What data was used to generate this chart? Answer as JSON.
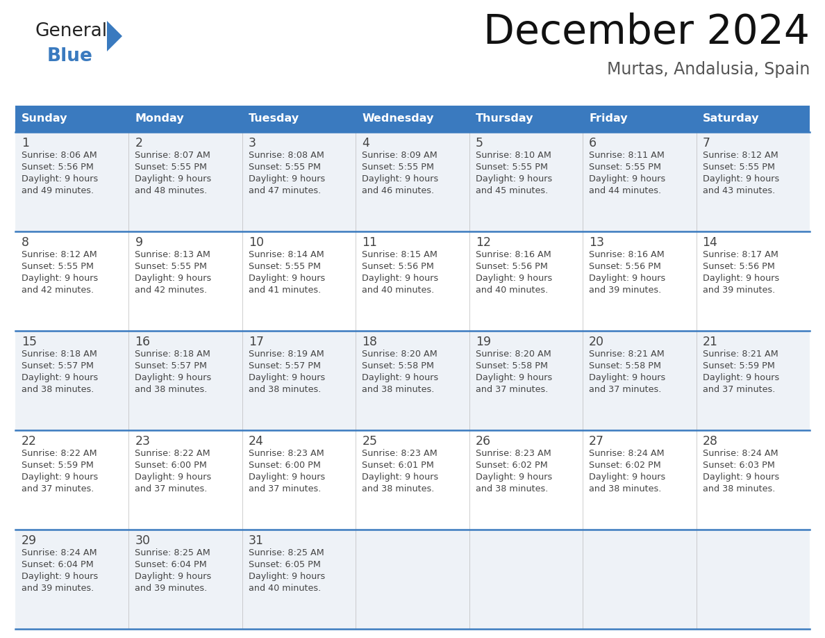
{
  "title": "December 2024",
  "subtitle": "Murtas, Andalusia, Spain",
  "header_bg": "#3a7abf",
  "header_text": "#ffffff",
  "row_bg_odd": "#eef2f7",
  "row_bg_even": "#ffffff",
  "day_divider_color": "#3a7abf",
  "text_color": "#444444",
  "days_of_week": [
    "Sunday",
    "Monday",
    "Tuesday",
    "Wednesday",
    "Thursday",
    "Friday",
    "Saturday"
  ],
  "calendar_data": [
    [
      {
        "day": 1,
        "sunrise": "8:06 AM",
        "sunset": "5:56 PM",
        "daylight_l1": "Daylight: 9 hours",
        "daylight_l2": "and 49 minutes."
      },
      {
        "day": 2,
        "sunrise": "8:07 AM",
        "sunset": "5:55 PM",
        "daylight_l1": "Daylight: 9 hours",
        "daylight_l2": "and 48 minutes."
      },
      {
        "day": 3,
        "sunrise": "8:08 AM",
        "sunset": "5:55 PM",
        "daylight_l1": "Daylight: 9 hours",
        "daylight_l2": "and 47 minutes."
      },
      {
        "day": 4,
        "sunrise": "8:09 AM",
        "sunset": "5:55 PM",
        "daylight_l1": "Daylight: 9 hours",
        "daylight_l2": "and 46 minutes."
      },
      {
        "day": 5,
        "sunrise": "8:10 AM",
        "sunset": "5:55 PM",
        "daylight_l1": "Daylight: 9 hours",
        "daylight_l2": "and 45 minutes."
      },
      {
        "day": 6,
        "sunrise": "8:11 AM",
        "sunset": "5:55 PM",
        "daylight_l1": "Daylight: 9 hours",
        "daylight_l2": "and 44 minutes."
      },
      {
        "day": 7,
        "sunrise": "8:12 AM",
        "sunset": "5:55 PM",
        "daylight_l1": "Daylight: 9 hours",
        "daylight_l2": "and 43 minutes."
      }
    ],
    [
      {
        "day": 8,
        "sunrise": "8:12 AM",
        "sunset": "5:55 PM",
        "daylight_l1": "Daylight: 9 hours",
        "daylight_l2": "and 42 minutes."
      },
      {
        "day": 9,
        "sunrise": "8:13 AM",
        "sunset": "5:55 PM",
        "daylight_l1": "Daylight: 9 hours",
        "daylight_l2": "and 42 minutes."
      },
      {
        "day": 10,
        "sunrise": "8:14 AM",
        "sunset": "5:55 PM",
        "daylight_l1": "Daylight: 9 hours",
        "daylight_l2": "and 41 minutes."
      },
      {
        "day": 11,
        "sunrise": "8:15 AM",
        "sunset": "5:56 PM",
        "daylight_l1": "Daylight: 9 hours",
        "daylight_l2": "and 40 minutes."
      },
      {
        "day": 12,
        "sunrise": "8:16 AM",
        "sunset": "5:56 PM",
        "daylight_l1": "Daylight: 9 hours",
        "daylight_l2": "and 40 minutes."
      },
      {
        "day": 13,
        "sunrise": "8:16 AM",
        "sunset": "5:56 PM",
        "daylight_l1": "Daylight: 9 hours",
        "daylight_l2": "and 39 minutes."
      },
      {
        "day": 14,
        "sunrise": "8:17 AM",
        "sunset": "5:56 PM",
        "daylight_l1": "Daylight: 9 hours",
        "daylight_l2": "and 39 minutes."
      }
    ],
    [
      {
        "day": 15,
        "sunrise": "8:18 AM",
        "sunset": "5:57 PM",
        "daylight_l1": "Daylight: 9 hours",
        "daylight_l2": "and 38 minutes."
      },
      {
        "day": 16,
        "sunrise": "8:18 AM",
        "sunset": "5:57 PM",
        "daylight_l1": "Daylight: 9 hours",
        "daylight_l2": "and 38 minutes."
      },
      {
        "day": 17,
        "sunrise": "8:19 AM",
        "sunset": "5:57 PM",
        "daylight_l1": "Daylight: 9 hours",
        "daylight_l2": "and 38 minutes."
      },
      {
        "day": 18,
        "sunrise": "8:20 AM",
        "sunset": "5:58 PM",
        "daylight_l1": "Daylight: 9 hours",
        "daylight_l2": "and 38 minutes."
      },
      {
        "day": 19,
        "sunrise": "8:20 AM",
        "sunset": "5:58 PM",
        "daylight_l1": "Daylight: 9 hours",
        "daylight_l2": "and 37 minutes."
      },
      {
        "day": 20,
        "sunrise": "8:21 AM",
        "sunset": "5:58 PM",
        "daylight_l1": "Daylight: 9 hours",
        "daylight_l2": "and 37 minutes."
      },
      {
        "day": 21,
        "sunrise": "8:21 AM",
        "sunset": "5:59 PM",
        "daylight_l1": "Daylight: 9 hours",
        "daylight_l2": "and 37 minutes."
      }
    ],
    [
      {
        "day": 22,
        "sunrise": "8:22 AM",
        "sunset": "5:59 PM",
        "daylight_l1": "Daylight: 9 hours",
        "daylight_l2": "and 37 minutes."
      },
      {
        "day": 23,
        "sunrise": "8:22 AM",
        "sunset": "6:00 PM",
        "daylight_l1": "Daylight: 9 hours",
        "daylight_l2": "and 37 minutes."
      },
      {
        "day": 24,
        "sunrise": "8:23 AM",
        "sunset": "6:00 PM",
        "daylight_l1": "Daylight: 9 hours",
        "daylight_l2": "and 37 minutes."
      },
      {
        "day": 25,
        "sunrise": "8:23 AM",
        "sunset": "6:01 PM",
        "daylight_l1": "Daylight: 9 hours",
        "daylight_l2": "and 38 minutes."
      },
      {
        "day": 26,
        "sunrise": "8:23 AM",
        "sunset": "6:02 PM",
        "daylight_l1": "Daylight: 9 hours",
        "daylight_l2": "and 38 minutes."
      },
      {
        "day": 27,
        "sunrise": "8:24 AM",
        "sunset": "6:02 PM",
        "daylight_l1": "Daylight: 9 hours",
        "daylight_l2": "and 38 minutes."
      },
      {
        "day": 28,
        "sunrise": "8:24 AM",
        "sunset": "6:03 PM",
        "daylight_l1": "Daylight: 9 hours",
        "daylight_l2": "and 38 minutes."
      }
    ],
    [
      {
        "day": 29,
        "sunrise": "8:24 AM",
        "sunset": "6:04 PM",
        "daylight_l1": "Daylight: 9 hours",
        "daylight_l2": "and 39 minutes."
      },
      {
        "day": 30,
        "sunrise": "8:25 AM",
        "sunset": "6:04 PM",
        "daylight_l1": "Daylight: 9 hours",
        "daylight_l2": "and 39 minutes."
      },
      {
        "day": 31,
        "sunrise": "8:25 AM",
        "sunset": "6:05 PM",
        "daylight_l1": "Daylight: 9 hours",
        "daylight_l2": "and 40 minutes."
      },
      null,
      null,
      null,
      null
    ]
  ],
  "logo_color_general": "#222222",
  "logo_color_blue": "#3a7abf",
  "logo_triangle_color": "#3a7abf",
  "title_color": "#111111",
  "subtitle_color": "#555555"
}
